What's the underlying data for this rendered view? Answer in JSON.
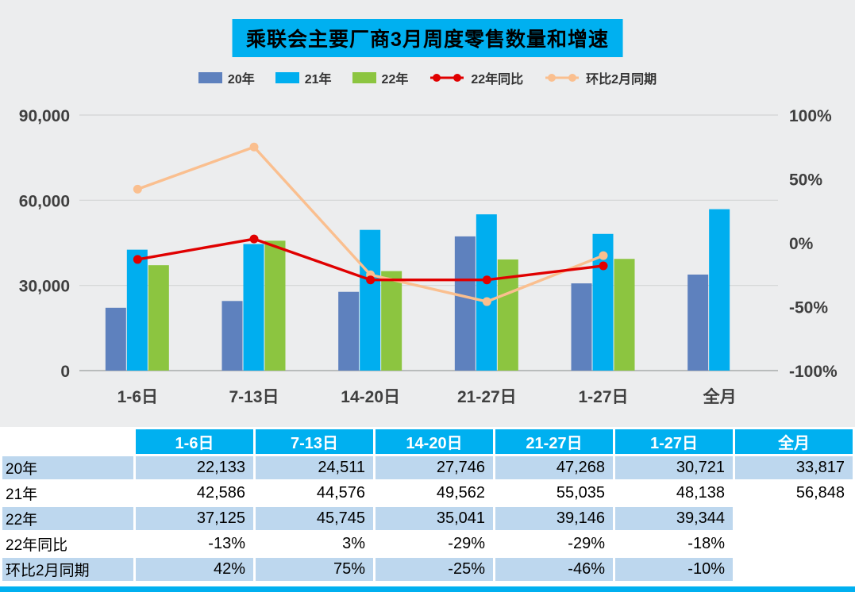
{
  "chart_data": {
    "type": "bar",
    "subtype": "combo-bar-line",
    "title": "乘联会主要厂商3月周度零售数量和增速",
    "categories": [
      "1-6日",
      "7-13日",
      "14-20日",
      "21-27日",
      "1-27日",
      "全月"
    ],
    "bar_series": [
      {
        "name": "20年",
        "color": "#5E81BE",
        "values": [
          22133,
          24511,
          27746,
          47268,
          30721,
          33817
        ]
      },
      {
        "name": "21年",
        "color": "#00AEEF",
        "values": [
          42586,
          44576,
          49562,
          55035,
          48138,
          56848
        ]
      },
      {
        "name": "22年",
        "color": "#8CC540",
        "values": [
          37125,
          45745,
          35041,
          39146,
          39344,
          null
        ]
      }
    ],
    "line_series": [
      {
        "name": "22年同比",
        "color": "#E00000",
        "marker_fill": "#E00000",
        "values": [
          -13,
          3,
          -29,
          -29,
          -18,
          null
        ]
      },
      {
        "name": "环比2月同期",
        "color": "#FABF8F",
        "marker_fill": "#FABF8F",
        "values": [
          42,
          75,
          -25,
          -46,
          -10,
          null
        ]
      }
    ],
    "left_axis": {
      "min": 0,
      "max": 90000,
      "ticks": [
        0,
        30000,
        60000,
        90000
      ],
      "tick_labels": [
        "0",
        "30,000",
        "60,000",
        "90,000"
      ]
    },
    "right_axis": {
      "min": -100,
      "max": 100,
      "ticks": [
        -100,
        -50,
        0,
        50,
        100
      ],
      "tick_labels": [
        "-100%",
        "-50%",
        "0%",
        "50%",
        "100%"
      ]
    },
    "legend_position": "top",
    "grid": true,
    "plot_bg": "#ECEDEE"
  },
  "table": {
    "header": [
      "",
      "1-6日",
      "7-13日",
      "14-20日",
      "21-27日",
      "1-27日",
      "全月"
    ],
    "rows": [
      {
        "label": "20年",
        "cells": [
          "22,133",
          "24,511",
          "27,746",
          "47,268",
          "30,721",
          "33,817"
        ]
      },
      {
        "label": "21年",
        "cells": [
          "42,586",
          "44,576",
          "49,562",
          "55,035",
          "48,138",
          "56,848"
        ]
      },
      {
        "label": "22年",
        "cells": [
          "37,125",
          "45,745",
          "35,041",
          "39,146",
          "39,344",
          ""
        ]
      },
      {
        "label": "22年同比",
        "cells": [
          "-13%",
          "3%",
          "-29%",
          "-29%",
          "-18%",
          ""
        ]
      },
      {
        "label": "环比2月同期",
        "cells": [
          "42%",
          "75%",
          "-25%",
          "-46%",
          "-10%",
          ""
        ]
      }
    ],
    "colors": {
      "header_bg": "#00B0F0",
      "header_text": "#FFFFFF",
      "row_alt_bg": "#BDD7EE",
      "row_bg": "#FFFFFF"
    }
  }
}
